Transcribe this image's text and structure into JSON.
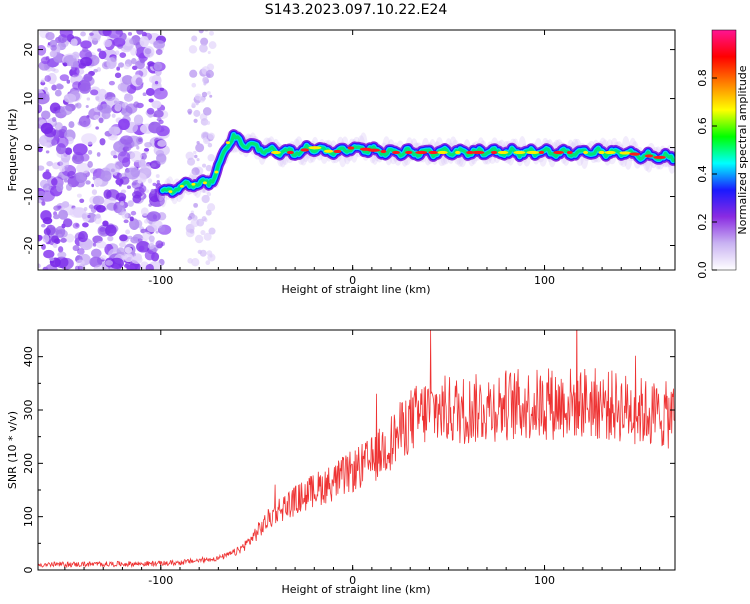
{
  "title": "S143.2023.097.10.22.E24",
  "chart_data": [
    {
      "type": "heatmap",
      "xlabel": "Height of straight line (km)",
      "ylabel": "Frequency (Hz)",
      "xlim": [
        -164,
        168
      ],
      "ylim": [
        -25,
        24
      ],
      "x_ticks": [
        -100,
        0,
        100
      ],
      "y_ticks": [
        -20,
        -10,
        0,
        10,
        20
      ],
      "colorbar": {
        "label": "Normalized spectral amplitude",
        "range": [
          0.0,
          1.0
        ],
        "ticks": [
          "0.0",
          "0.2",
          "0.4",
          "0.6",
          "0.8"
        ],
        "tick_values": [
          0.0,
          0.2,
          0.4,
          0.6,
          0.8
        ],
        "colors": [
          "#ffffff",
          "#c9b3f2",
          "#8a2be2",
          "#1a1aff",
          "#00ffff",
          "#00ff00",
          "#ffff00",
          "#ff8000",
          "#ff0000",
          "#ff1493"
        ]
      },
      "ridge": {
        "x": [
          -100,
          -95,
          -90,
          -85,
          -80,
          -75,
          -72,
          -68,
          -65,
          -62,
          -58,
          -50,
          -40,
          -30,
          -20,
          -10,
          0,
          20,
          40,
          60,
          80,
          100,
          120,
          140,
          160,
          168
        ],
        "frequency": [
          -9,
          -9,
          -8,
          -7.5,
          -7.5,
          -7,
          -6,
          -2,
          1,
          2,
          1,
          0,
          -1,
          -1,
          0,
          -1,
          0,
          -1,
          -1,
          -1,
          -1,
          -1,
          -1,
          -1,
          -2,
          -2
        ]
      },
      "noise_region_x": [
        -164,
        -98
      ]
    },
    {
      "type": "line",
      "xlabel": "Height of straight line (km)",
      "ylabel": "SNR (10 * v/v)",
      "xlim": [
        -164,
        168
      ],
      "ylim": [
        0,
        450
      ],
      "x_ticks": [
        -100,
        0,
        100
      ],
      "y_ticks": [
        0,
        100,
        200,
        300,
        400
      ],
      "line_color": "#ee3333",
      "trend": {
        "x": [
          -164,
          -100,
          -90,
          -80,
          -70,
          -60,
          -55,
          -50,
          -45,
          -40,
          -30,
          -20,
          -10,
          0,
          10,
          20,
          30,
          40,
          60,
          80,
          100,
          120,
          140,
          160,
          168
        ],
        "y": [
          10,
          12,
          14,
          18,
          22,
          35,
          50,
          70,
          90,
          110,
          130,
          150,
          165,
          185,
          205,
          240,
          280,
          300,
          300,
          310,
          310,
          315,
          305,
          290,
          290
        ]
      }
    }
  ]
}
